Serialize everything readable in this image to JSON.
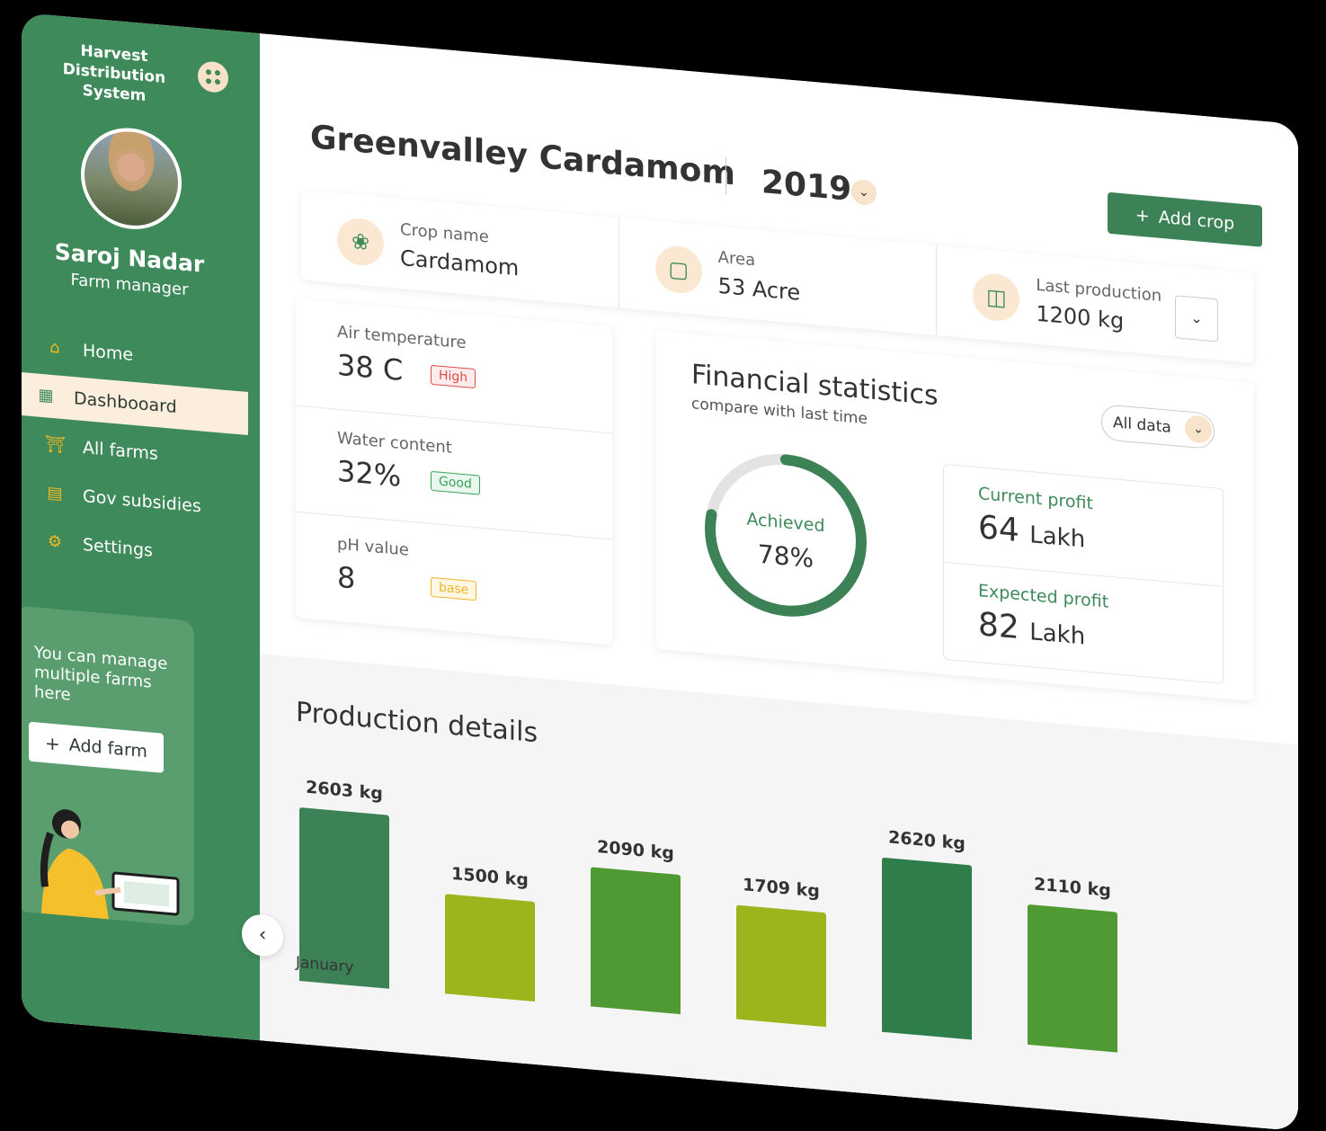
{
  "app": {
    "title_line1": "Harvest Distribution",
    "title_line2": "System"
  },
  "user": {
    "name": "Saroj Nadar",
    "role": "Farm manager"
  },
  "nav": [
    {
      "label": "Home",
      "icon": "home-icon"
    },
    {
      "label": "Dashbooard",
      "icon": "dashboard-icon"
    },
    {
      "label": "All farms",
      "icon": "farm-icon"
    },
    {
      "label": "Gov subsidies",
      "icon": "document-icon"
    },
    {
      "label": "Settings",
      "icon": "gear-icon"
    }
  ],
  "promo": {
    "text": "You can manage multiple farms here",
    "button": "Add farm"
  },
  "header": {
    "title": "Greenvalley Cardamom",
    "year": "2019",
    "add_crop": "Add crop"
  },
  "info": {
    "crop": {
      "label": "Crop name",
      "value": "Cardamom"
    },
    "area": {
      "label": "Area",
      "value": "53 Acre"
    },
    "production": {
      "label": "Last production",
      "value": "1200 kg"
    }
  },
  "env": {
    "air": {
      "label": "Air temperature",
      "value": "38 C",
      "badge": "High"
    },
    "water": {
      "label": "Water content",
      "value": "32%",
      "badge": "Good"
    },
    "ph": {
      "label": "pH value",
      "value": "8",
      "badge": "base"
    }
  },
  "financial": {
    "title": "Financial statistics",
    "subtitle": "compare with last time",
    "filter": "All data",
    "achieved_label": "Achieved",
    "achieved_value": "78%",
    "achieved_fraction": 0.78,
    "current_label": "Current profit",
    "current_value": "64",
    "current_unit": "Lakh",
    "expected_label": "Expected profit",
    "expected_value": "82",
    "expected_unit": "Lakh"
  },
  "production": {
    "title": "Production details",
    "first_month": "January"
  },
  "chart_data": {
    "type": "bar",
    "title": "Production details",
    "values": [
      2603,
      1500,
      2090,
      1709,
      2620,
      2110
    ],
    "labels": [
      "2603 kg",
      "1500 kg",
      "2090 kg",
      "1709 kg",
      "2620 kg",
      "2110 kg"
    ],
    "colors": [
      "#3d8156",
      "#9bb51c",
      "#4f9a32",
      "#9bb51c",
      "#2f7d4a",
      "#4f9a32"
    ]
  }
}
